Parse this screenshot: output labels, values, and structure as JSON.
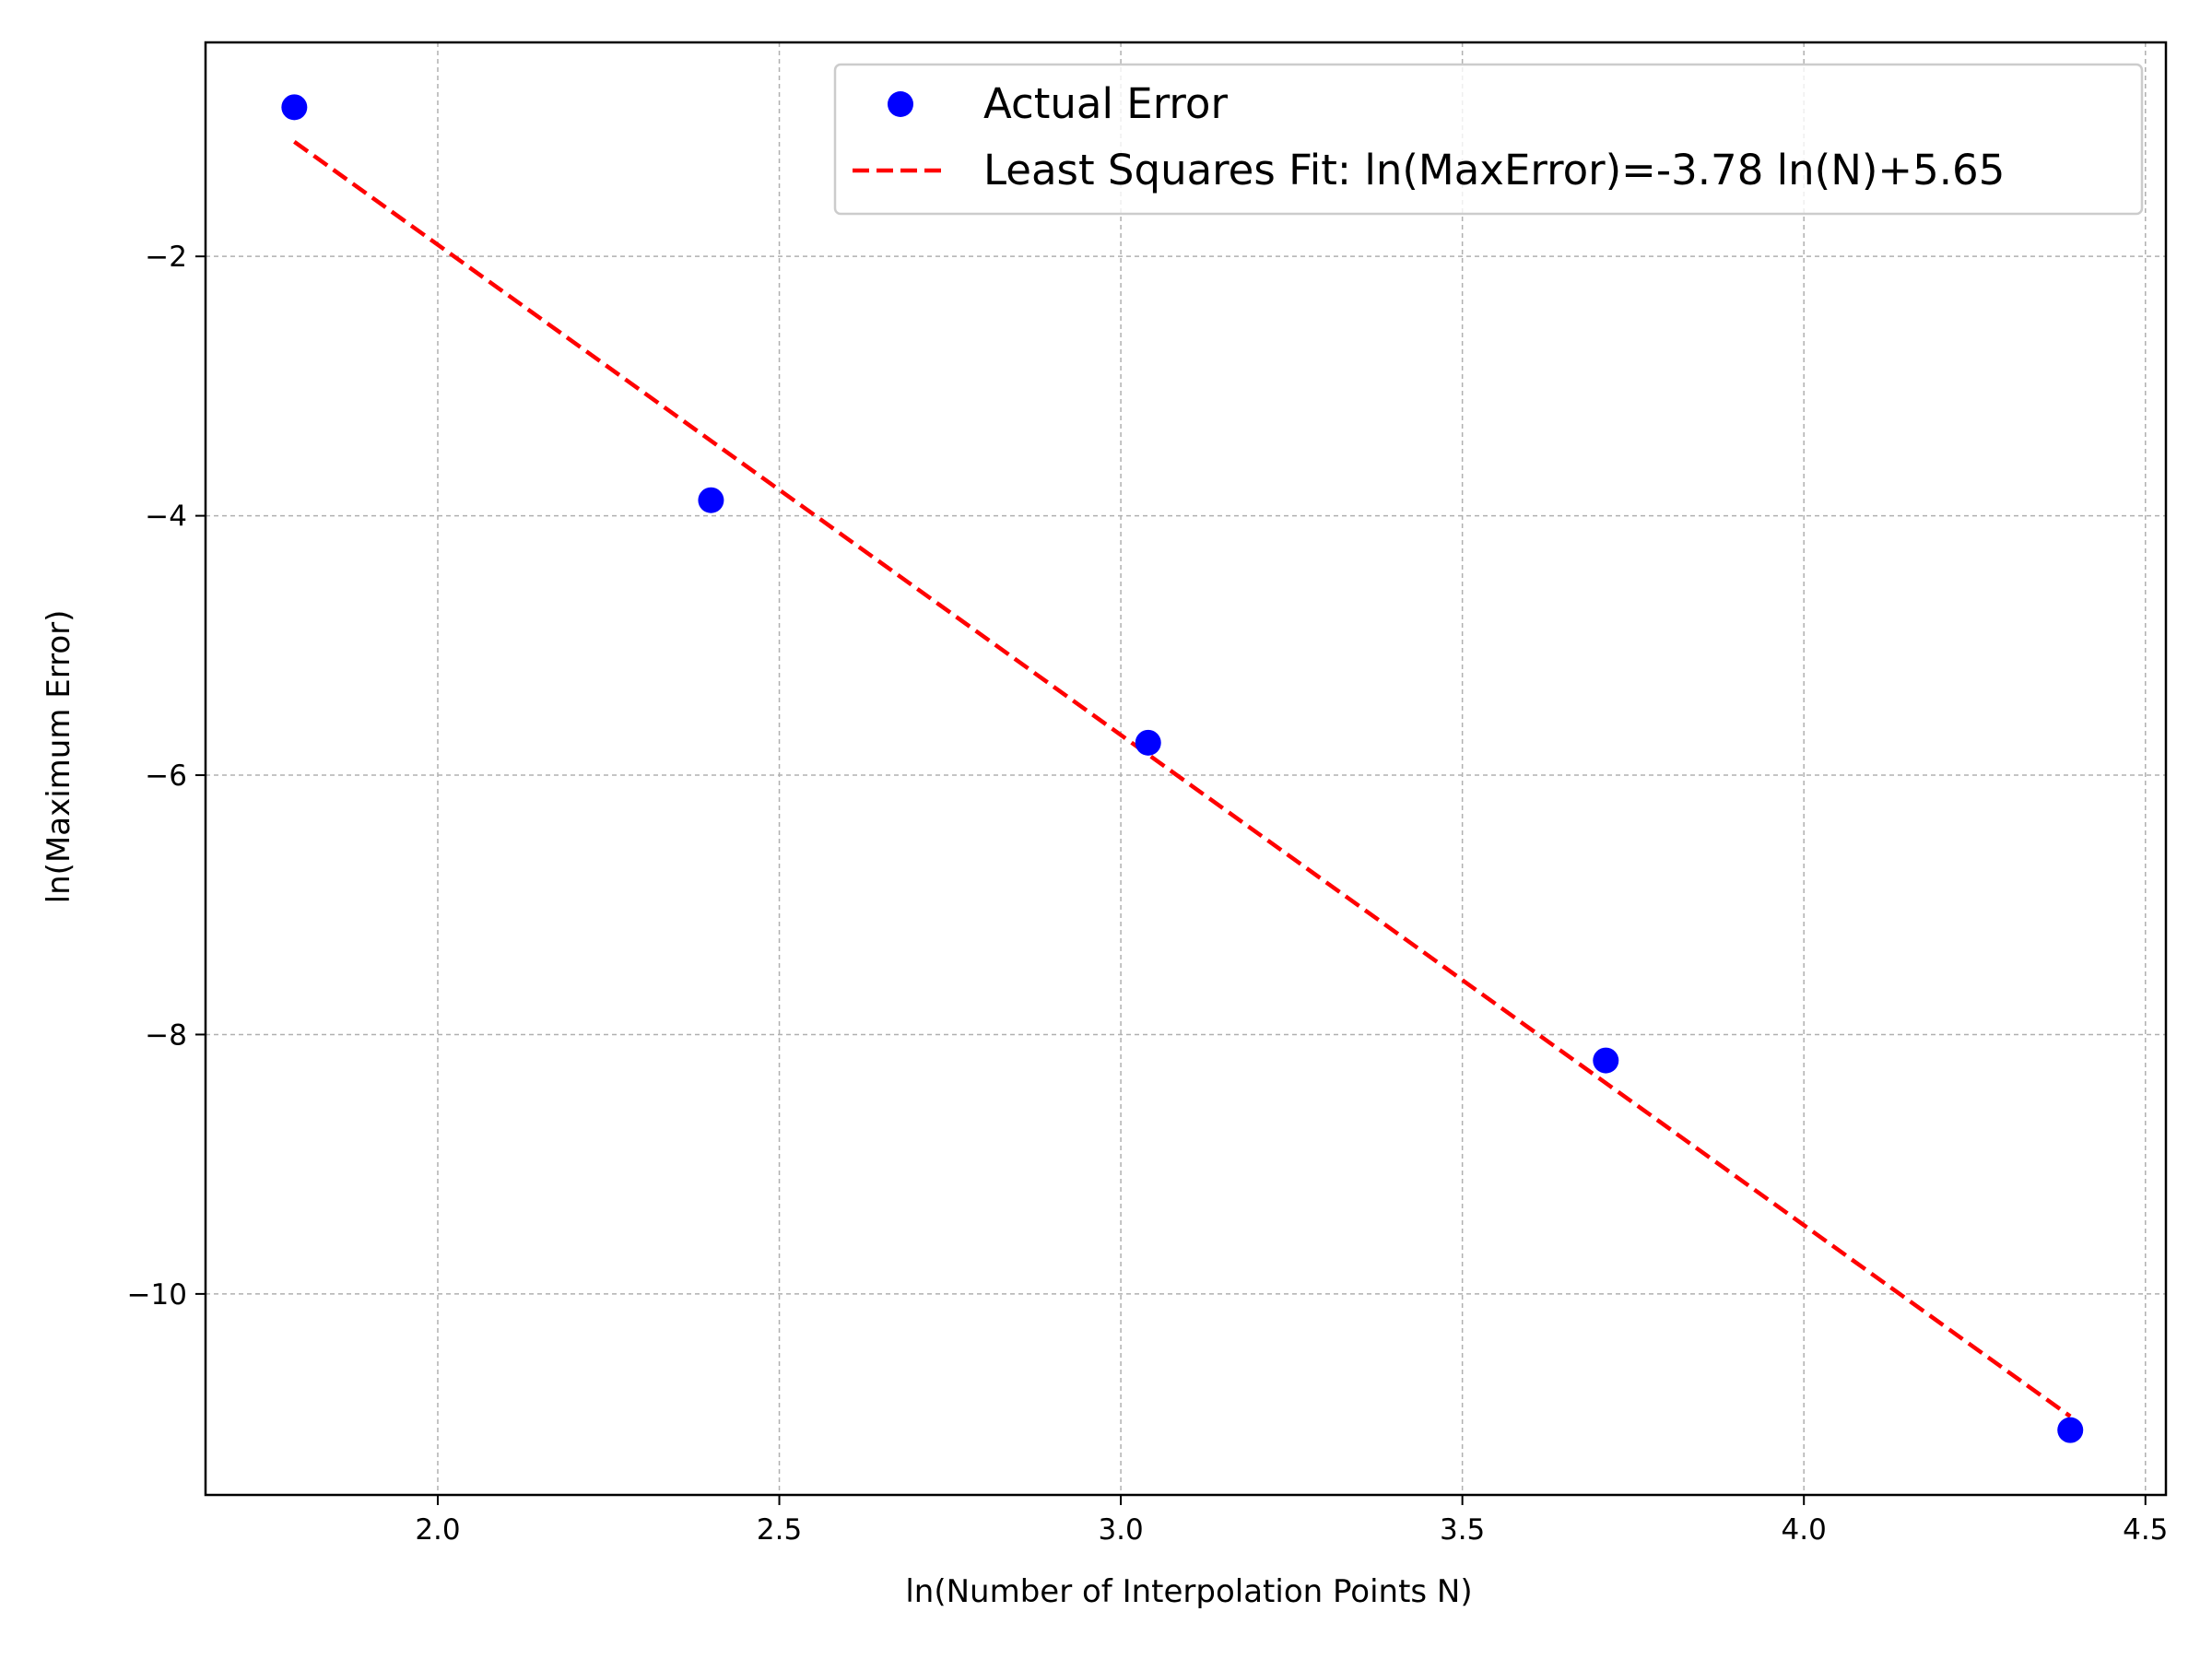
{
  "chart_data": {
    "type": "scatter",
    "xlabel": "ln(Number of Interpolation Points N)",
    "ylabel": "ln(Maximum Error)",
    "xlim": [
      1.66,
      4.53
    ],
    "ylim": [
      -11.55,
      -0.35
    ],
    "x_ticks": [
      2.0,
      2.5,
      3.0,
      3.5,
      4.0,
      4.5
    ],
    "x_tick_labels": [
      "2.0",
      "2.5",
      "3.0",
      "3.5",
      "4.0",
      "4.5"
    ],
    "y_ticks": [
      -2,
      -4,
      -6,
      -8,
      -10
    ],
    "y_tick_labels": [
      "−2",
      "−4",
      "−6",
      "−8",
      "−10"
    ],
    "grid": true,
    "legend_position": "top-right",
    "series": [
      {
        "name": "Actual Error",
        "type": "scatter",
        "color": "#0000ff",
        "x": [
          1.79,
          2.4,
          3.04,
          3.71,
          4.39
        ],
        "y": [
          -0.85,
          -3.88,
          -5.75,
          -8.2,
          -11.05
        ]
      },
      {
        "name": "Least Squares Fit: ln(MaxError)=-3.78 ln(N)+5.65",
        "type": "line",
        "style": "dashed",
        "color": "#ff0000",
        "slope": -3.78,
        "intercept": 5.65,
        "x_range": [
          1.79,
          4.39
        ]
      }
    ]
  }
}
